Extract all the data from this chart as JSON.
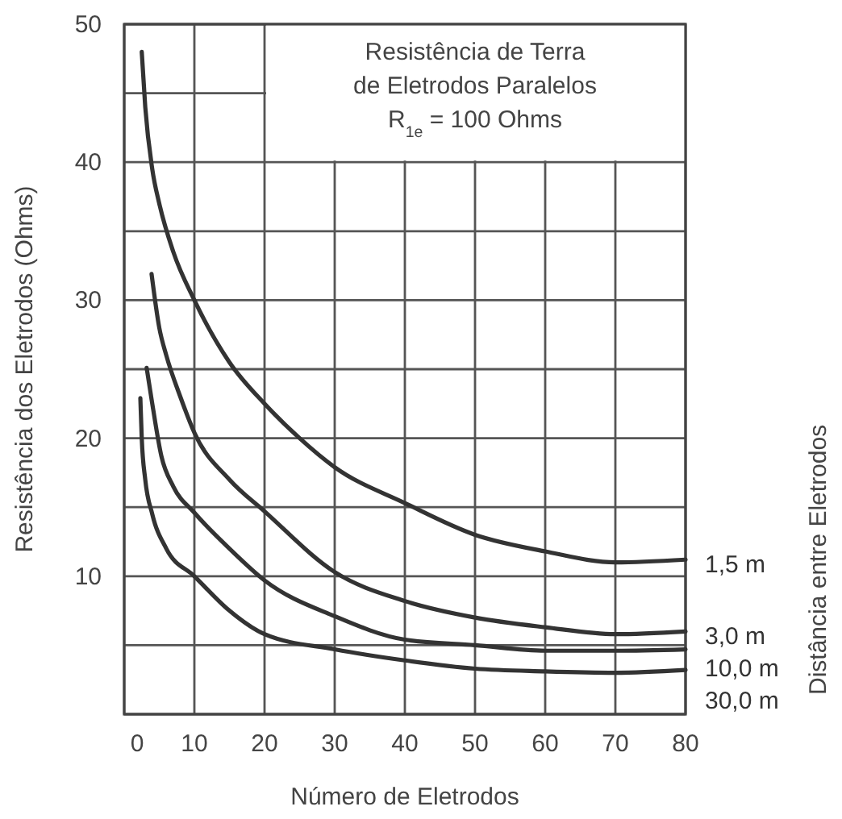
{
  "chart_data": {
    "type": "line",
    "title": "Resistência de Terra\nde Eletrodos Paralelos",
    "subtitle": "R$_{1e}$ = 100 Ohms",
    "xlabel": "Número de Eletrodos",
    "ylabel": "Resistência dos Eletrodos (Ohms)",
    "legend_title": "Distância entre Eletrodos",
    "legend": "right",
    "grid": true,
    "marker": "none",
    "line_style": "solid",
    "xlim": [
      0,
      80
    ],
    "xticks": [
      0,
      10,
      20,
      30,
      40,
      50,
      60,
      70,
      80
    ],
    "ylim": [
      0,
      50
    ],
    "yticks": [
      {
        "value": 0,
        "label": null
      },
      {
        "value": 5,
        "label": null
      },
      10,
      {
        "value": 15,
        "label": null
      },
      20,
      {
        "value": 25,
        "label": null
      },
      30,
      {
        "value": 35,
        "label": null
      },
      40,
      {
        "value": 45,
        "label": null
      },
      50
    ],
    "series": [
      {
        "name": "1,5 m",
        "color": "#333333",
        "x": [
          2.5,
          3,
          4,
          5,
          7,
          10,
          15,
          20,
          25,
          30,
          40,
          50,
          60,
          70,
          80
        ],
        "values": [
          48,
          44,
          39.5,
          37,
          33.5,
          30,
          25.5,
          22.5,
          20,
          17.9,
          15.3,
          13,
          11.8,
          11,
          11.2
        ]
      },
      {
        "name": "3,0 m",
        "color": "#333333",
        "x": [
          3.9,
          5,
          6,
          8,
          10,
          15,
          20,
          30,
          40,
          50,
          60,
          70,
          80
        ],
        "values": [
          31.9,
          28,
          26,
          23,
          20.4,
          17,
          14.7,
          10.3,
          8.2,
          7,
          6.3,
          5.8,
          6.0
        ]
      },
      {
        "name": "10,0 m",
        "color": "#333333",
        "x": [
          3.2,
          4,
          5.3,
          7,
          10,
          15,
          20,
          30,
          40,
          50,
          60,
          70,
          80
        ],
        "values": [
          25.1,
          22.5,
          18.7,
          16.5,
          14.6,
          12,
          9.7,
          7.1,
          5.4,
          5.0,
          4.6,
          4.6,
          4.7
        ]
      },
      {
        "name": "30,0 m",
        "color": "#333333",
        "x": [
          2.3,
          2.5,
          3,
          4,
          6,
          10,
          15,
          20,
          30,
          40,
          50,
          60,
          70,
          80
        ],
        "values": [
          22.9,
          20,
          17,
          14.5,
          12,
          10,
          7.5,
          5.8,
          4.7,
          3.9,
          3.3,
          3.1,
          3.0,
          3.2
        ]
      }
    ]
  }
}
